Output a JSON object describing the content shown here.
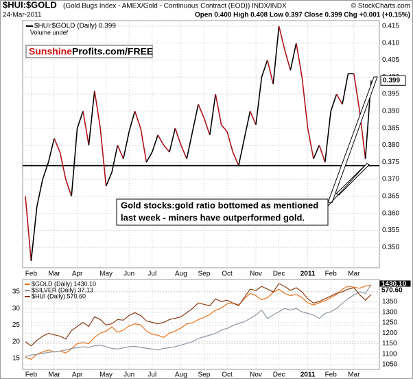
{
  "chart_data": [
    {
      "type": "line",
      "title": "$HUI:$GOLD",
      "subtitle": "(Gold Bugs Index - AMEX/Gold - Continuous Contract (EOD)) INDX/INDX",
      "source": "© StockCharts.com",
      "date": "24-Mar-2011",
      "quote": "Open 0.400 High 0.408 Low 0.397 Close 0.399 Chg +0.001 (+0.15%)",
      "logo_parts": [
        "Sunshine",
        "Profits.com/FREE"
      ],
      "volume_note": "Volume undef",
      "annotation": [
        "Gold stocks:gold ratio bottomed as mentioned",
        "last week - miners have outperformed gold."
      ],
      "support_level": 0.374,
      "end_label": "0.399",
      "up_color": "#000000",
      "down_color": "#b0101a",
      "grid": true,
      "categories": [
        null,
        "Feb",
        null,
        null,
        null,
        "Mar",
        null,
        null,
        null,
        "Apr",
        null,
        null,
        null,
        null,
        "May",
        null,
        null,
        null,
        "Jun",
        null,
        null,
        null,
        "Jul",
        null,
        null,
        null,
        null,
        "Aug",
        null,
        null,
        null,
        "Sep",
        null,
        null,
        null,
        "Oct",
        null,
        null,
        null,
        null,
        "Nov",
        null,
        null,
        null,
        "Dec",
        null,
        null,
        null,
        null,
        "2011",
        null,
        null,
        null,
        "Feb",
        null,
        null,
        null,
        "Mar",
        null,
        null,
        null
      ],
      "series": [
        {
          "name": "$HUI:$GOLD (Daily) 0.399",
          "color": "#000000",
          "values": [
            0.365,
            0.346,
            0.362,
            0.37,
            0.375,
            0.382,
            0.378,
            0.37,
            0.365,
            0.385,
            0.39,
            0.38,
            0.396,
            0.385,
            0.368,
            0.372,
            0.38,
            0.376,
            0.384,
            0.39,
            0.385,
            0.375,
            0.378,
            0.383,
            0.38,
            0.378,
            0.385,
            0.38,
            0.376,
            0.384,
            0.392,
            0.388,
            0.383,
            0.395,
            0.386,
            0.384,
            0.378,
            0.374,
            0.382,
            0.39,
            0.386,
            0.4,
            0.405,
            0.398,
            0.415,
            0.408,
            0.402,
            0.41,
            0.4,
            0.385,
            0.376,
            0.38,
            0.375,
            0.39,
            0.395,
            0.392,
            0.401,
            0.401,
            0.39,
            0.376,
            0.399
          ]
        }
      ],
      "ylim": [
        0.344,
        0.4166
      ],
      "yticks": [
        {
          "value": 0.35,
          "label": "0.350"
        },
        {
          "value": 0.355,
          "label": "0.355"
        },
        {
          "value": 0.36,
          "label": "0.360"
        },
        {
          "value": 0.365,
          "label": "0.365"
        },
        {
          "value": 0.37,
          "label": "0.370"
        },
        {
          "value": 0.375,
          "label": "0.375"
        },
        {
          "value": 0.38,
          "label": "0.380"
        },
        {
          "value": 0.385,
          "label": "0.385"
        },
        {
          "value": 0.39,
          "label": "0.390"
        },
        {
          "value": 0.395,
          "label": "0.395"
        },
        {
          "value": 0.4,
          "label": "0.400"
        },
        {
          "value": 0.405,
          "label": "0.405"
        },
        {
          "value": 0.41,
          "label": "0.410"
        },
        {
          "value": 0.415,
          "label": "0.415"
        }
      ]
    },
    {
      "type": "line",
      "grid": true,
      "categories": [
        null,
        "Feb",
        null,
        null,
        null,
        "Mar",
        null,
        null,
        null,
        "Apr",
        null,
        null,
        null,
        null,
        "May",
        null,
        null,
        null,
        "Jun",
        null,
        null,
        null,
        "Jul",
        null,
        null,
        null,
        null,
        "Aug",
        null,
        null,
        null,
        "Sep",
        null,
        null,
        null,
        "Oct",
        null,
        null,
        null,
        null,
        "Nov",
        null,
        null,
        null,
        "Dec",
        null,
        null,
        null,
        null,
        "2011",
        null,
        null,
        null,
        "Feb",
        null,
        null,
        null,
        "Mar",
        null,
        null,
        null
      ],
      "series": [
        {
          "name": "$GOLD (Daily) 1430.10",
          "color": "#e8701a",
          "axis": "y2",
          "end_label": "1430.10",
          "values": [
            1085,
            1075,
            1100,
            1110,
            1120,
            1110,
            1115,
            1105,
            1125,
            1150,
            1155,
            1150,
            1180,
            1200,
            1210,
            1230,
            1205,
            1215,
            1235,
            1245,
            1240,
            1210,
            1195,
            1190,
            1180,
            1200,
            1210,
            1225,
            1245,
            1250,
            1265,
            1275,
            1290,
            1310,
            1320,
            1340,
            1345,
            1335,
            1365,
            1390,
            1380,
            1360,
            1370,
            1395,
            1410,
            1390,
            1380,
            1385,
            1370,
            1345,
            1335,
            1345,
            1355,
            1370,
            1385,
            1410,
            1425,
            1420,
            1415,
            1425,
            1430.1
          ]
        },
        {
          "name": "$SILVER (Daily) 37.13",
          "color": "#8a96a3",
          "values": [
            15.5,
            16.0,
            16.2,
            16.5,
            16.8,
            17.0,
            17.2,
            17.5,
            18.0,
            18.2,
            18.5,
            18.3,
            18.8,
            19.0,
            18.5,
            18.0,
            17.8,
            18.2,
            18.5,
            18.6,
            18.3,
            18.0,
            17.8,
            17.5,
            18.0,
            18.2,
            18.5,
            19.0,
            19.5,
            20.0,
            21.0,
            21.5,
            22.0,
            22.5,
            23.5,
            24.0,
            24.8,
            25.5,
            26.0,
            27.0,
            28.0,
            29.5,
            27.0,
            28.0,
            29.0,
            30.0,
            29.5,
            30.0,
            29.0,
            28.5,
            28.0,
            27.0,
            28.5,
            29.0,
            30.0,
            31.5,
            33.0,
            34.0,
            35.0,
            34.5,
            37.13
          ]
        },
        {
          "name": "$HUI (Daily) 570.60",
          "color": "#8b3a10",
          "axis": "y3",
          "end_label": "570.60",
          "values": [
            400,
            385,
            405,
            420,
            430,
            425,
            420,
            410,
            440,
            455,
            470,
            455,
            490,
            480,
            460,
            465,
            480,
            478,
            495,
            505,
            495,
            475,
            470,
            465,
            470,
            480,
            485,
            490,
            505,
            520,
            540,
            535,
            530,
            555,
            545,
            550,
            540,
            530,
            560,
            590,
            585,
            600,
            590,
            580,
            610,
            600,
            585,
            595,
            580,
            555,
            540,
            545,
            555,
            565,
            575,
            580,
            590,
            595,
            570,
            550,
            570.6
          ]
        }
      ],
      "ylim": [
        11.7,
        38.7
      ],
      "yticks": [
        15,
        20,
        25,
        30,
        35
      ],
      "y2lim": [
        1027,
        1457
      ],
      "y2ticks": [
        1050,
        1100,
        1150,
        1200,
        1250,
        1300,
        1350,
        1400
      ],
      "y3lim": [
        300,
        625
      ]
    }
  ]
}
